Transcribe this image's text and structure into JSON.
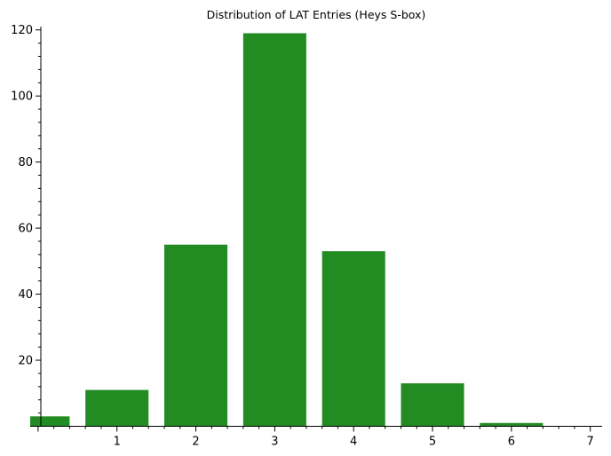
{
  "chart_data": {
    "type": "bar",
    "title": "Distribution of LAT Entries (Heys S-box)",
    "xlabel": "",
    "ylabel": "",
    "x": [
      0,
      1,
      2,
      3,
      4,
      5,
      6,
      7
    ],
    "values": [
      3,
      11,
      55,
      119,
      53,
      13,
      1,
      0
    ],
    "xlim": [
      -0.1,
      7.15
    ],
    "ylim": [
      0,
      121
    ],
    "xticks": [
      1,
      2,
      3,
      4,
      5,
      6,
      7
    ],
    "yticks": [
      20,
      40,
      60,
      80,
      100,
      120
    ],
    "bar_color": "#228b22",
    "grid": false,
    "legend": "none"
  }
}
